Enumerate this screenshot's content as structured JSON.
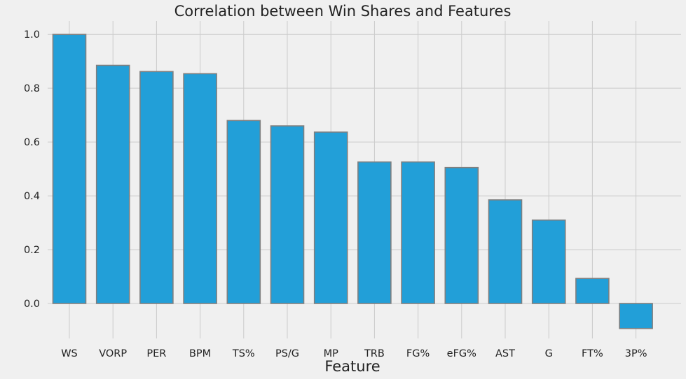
{
  "chart_data": {
    "type": "bar",
    "title": "Correlation between Win Shares and Features",
    "xlabel": "Feature",
    "ylabel": "",
    "categories": [
      "WS",
      "VORP",
      "PER",
      "BPM",
      "TS%",
      "PS/G",
      "MP",
      "TRB",
      "FG%",
      "eFG%",
      "AST",
      "G",
      "FT%",
      "3P%"
    ],
    "values": [
      1.0,
      0.885,
      0.862,
      0.854,
      0.68,
      0.66,
      0.637,
      0.526,
      0.526,
      0.505,
      0.385,
      0.31,
      0.093,
      -0.093
    ],
    "ylim": [
      -0.13,
      1.05
    ],
    "yticks": [
      "0.0",
      "0.2",
      "0.4",
      "0.6",
      "0.8",
      "1.0"
    ],
    "grid": true,
    "colors": {
      "bar": "#229fd8",
      "bar_edge": "#7f7f7f",
      "background": "#f0f0f0",
      "grid": "#cbcbcb"
    }
  }
}
